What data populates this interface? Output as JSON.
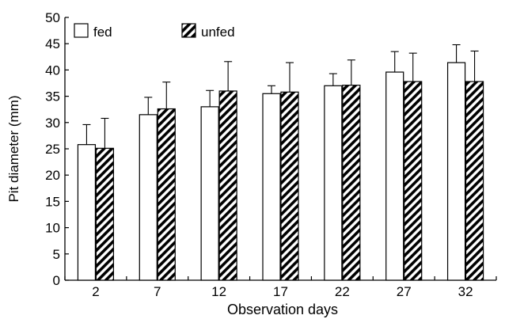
{
  "chart_data": {
    "type": "bar",
    "title": "",
    "xlabel": "Observation days",
    "ylabel": "Pit diameter (mm)",
    "categories": [
      "2",
      "7",
      "12",
      "17",
      "22",
      "27",
      "32"
    ],
    "ylim": [
      0,
      50
    ],
    "yticks": [
      "0",
      "5",
      "10",
      "15",
      "20",
      "25",
      "30",
      "35",
      "40",
      "45",
      "50"
    ],
    "grid": false,
    "legend_position": "top-left",
    "series": [
      {
        "name": "fed",
        "pattern": "solid-white",
        "values": [
          25.8,
          31.5,
          33.0,
          35.5,
          37.0,
          39.6,
          41.4
        ],
        "error": [
          3.8,
          3.3,
          3.1,
          1.5,
          2.3,
          3.9,
          3.4
        ]
      },
      {
        "name": "unfed",
        "pattern": "black-diagonal-stripes",
        "values": [
          25.1,
          32.6,
          36.0,
          35.8,
          37.1,
          37.8,
          37.8
        ],
        "error": [
          5.7,
          5.1,
          5.6,
          5.6,
          4.8,
          5.4,
          5.8
        ]
      }
    ]
  }
}
